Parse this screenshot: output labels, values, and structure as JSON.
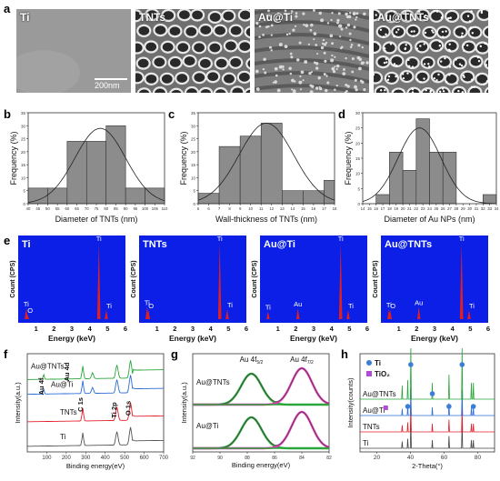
{
  "panels": {
    "a": "a",
    "b": "b",
    "c": "c",
    "d": "d",
    "e": "e",
    "f": "f",
    "g": "g",
    "h": "h"
  },
  "sem": {
    "images": [
      {
        "label": "Ti",
        "tone": "#9a9a9a"
      },
      {
        "label": "TNTs",
        "tone": "#6f6f6f"
      },
      {
        "label": "Au@Ti",
        "tone": "#7d7d7d"
      },
      {
        "label": "Au@TNTs",
        "tone": "#767676"
      }
    ],
    "scale_bar": "200nm"
  },
  "chart_data": [
    {
      "panel": "b",
      "type": "bar",
      "xlabel": "Diameter of TNTs (nm)",
      "ylabel": "Frequency (%)",
      "xlim": [
        40,
        110
      ],
      "ylim": [
        0,
        35
      ],
      "xticks": [
        "40",
        "45",
        "50",
        "55",
        "60",
        "65",
        "70",
        "75",
        "80",
        "85",
        "90",
        "95",
        "100",
        "105",
        "110"
      ],
      "yticks": [
        "0",
        "5",
        "10",
        "15",
        "20",
        "25",
        "30",
        "35"
      ],
      "bins": [
        [
          40,
          50,
          6
        ],
        [
          50,
          60,
          6
        ],
        [
          60,
          70,
          24
        ],
        [
          70,
          80,
          24
        ],
        [
          80,
          90,
          30
        ],
        [
          90,
          100,
          6
        ],
        [
          100,
          110,
          6
        ]
      ],
      "fit_curve": {
        "type": "gaussian",
        "mean": 77,
        "sd": 13,
        "peak": 29
      }
    },
    {
      "panel": "c",
      "type": "bar",
      "xlabel": "Wall-thickness of TNTs (nm)",
      "ylabel": "Frequency (%)",
      "xlim": [
        5,
        18
      ],
      "ylim": [
        0,
        35
      ],
      "xticks": [
        "5",
        "6",
        "7",
        "8",
        "9",
        "10",
        "11",
        "12",
        "13",
        "14",
        "15",
        "16",
        "17",
        "18"
      ],
      "yticks": [
        "0",
        "5",
        "10",
        "15",
        "20",
        "25",
        "30",
        "35"
      ],
      "bins": [
        [
          5,
          7,
          4
        ],
        [
          7,
          9,
          22
        ],
        [
          9,
          11,
          26
        ],
        [
          11,
          13,
          31
        ],
        [
          13,
          15,
          5
        ],
        [
          15,
          17,
          5
        ],
        [
          17,
          18,
          9
        ]
      ],
      "fit_curve": {
        "type": "gaussian",
        "mean": 11.5,
        "sd": 2.6,
        "peak": 31
      }
    },
    {
      "panel": "d",
      "type": "bar",
      "xlabel": "Diameter of Au NPs (nm)",
      "ylabel": "Frequency (%)",
      "xlim": [
        14,
        34
      ],
      "ylim": [
        0,
        30
      ],
      "xticks": [
        "14",
        "15",
        "16",
        "17",
        "18",
        "19",
        "20",
        "21",
        "22",
        "23",
        "24",
        "25",
        "26",
        "27",
        "28",
        "29",
        "30",
        "31",
        "32",
        "33",
        "34"
      ],
      "yticks": [
        "0",
        "5",
        "10",
        "15",
        "20",
        "25",
        "30"
      ],
      "bins": [
        [
          16,
          18,
          3
        ],
        [
          18,
          20,
          17
        ],
        [
          20,
          22,
          11
        ],
        [
          22,
          24,
          28
        ],
        [
          24,
          26,
          17
        ],
        [
          26,
          28,
          17
        ],
        [
          32,
          34,
          3
        ]
      ],
      "fit_curve": {
        "type": "gaussian",
        "mean": 22.5,
        "sd": 3.2,
        "peak": 25
      }
    },
    {
      "panel": "e",
      "type": "bar",
      "xlabel": "Energy (keV)",
      "ylabel": "Count (CPS)",
      "xlim": [
        0,
        6
      ],
      "xticks": [
        "1",
        "2",
        "3",
        "4",
        "5",
        "6"
      ],
      "spectra": [
        {
          "name": "Ti",
          "peaks": [
            {
              "label": "Ti",
              "x": 0.45,
              "y": 0.14
            },
            {
              "label": "O",
              "x": 0.52,
              "y": 0.06
            },
            {
              "label": "Ti",
              "x": 4.51,
              "y": 1.0
            },
            {
              "label": "Ti",
              "x": 4.93,
              "y": 0.12
            }
          ]
        },
        {
          "name": "TNTs",
          "peaks": [
            {
              "label": "Ti",
              "x": 0.45,
              "y": 0.16
            },
            {
              "label": "O",
              "x": 0.52,
              "y": 0.12
            },
            {
              "label": "Ti",
              "x": 4.51,
              "y": 1.0
            },
            {
              "label": "Ti",
              "x": 4.93,
              "y": 0.13
            }
          ]
        },
        {
          "name": "Au@Ti",
          "peaks": [
            {
              "label": "Ti",
              "x": 0.45,
              "y": 0.1
            },
            {
              "label": "Au",
              "x": 2.12,
              "y": 0.14
            },
            {
              "label": "Ti",
              "x": 4.51,
              "y": 1.0
            },
            {
              "label": "Ti",
              "x": 4.93,
              "y": 0.12
            }
          ]
        },
        {
          "name": "Au@TNTs",
          "peaks": [
            {
              "label": "Ti",
              "x": 0.45,
              "y": 0.13
            },
            {
              "label": "O",
              "x": 0.52,
              "y": 0.12
            },
            {
              "label": "Au",
              "x": 2.12,
              "y": 0.16
            },
            {
              "label": "Ti",
              "x": 4.51,
              "y": 1.0
            },
            {
              "label": "Ti",
              "x": 4.93,
              "y": 0.12
            }
          ]
        }
      ],
      "colors": {
        "background": "#0b1fe6",
        "peak": "#e02020"
      }
    },
    {
      "panel": "f",
      "type": "line",
      "xlabel": "Binding energy(eV)",
      "ylabel": "Intensity(a.u.)",
      "xlim": [
        0,
        700
      ],
      "xticks": [
        "100",
        "200",
        "300",
        "400",
        "500",
        "600",
        "700"
      ],
      "series": [
        {
          "name": "Ti",
          "color": "#555555",
          "offset": 0.02
        },
        {
          "name": "TNTs",
          "color": "#e3202b",
          "offset": 0.27
        },
        {
          "name": "Au@Ti",
          "color": "#2b6cd8",
          "offset": 0.55
        },
        {
          "name": "Au@TNTs",
          "color": "#2aa63a",
          "offset": 0.7
        }
      ],
      "peak_labels": [
        "Au 4f",
        "Au 4d",
        "C 1s",
        "Ti 2p",
        "O 1s"
      ]
    },
    {
      "panel": "g",
      "type": "line",
      "xlabel": "Binding energy(eV)",
      "ylabel": "Intensity(a.u.)",
      "xlim": [
        92,
        82
      ],
      "xticks": [
        "92",
        "90",
        "88",
        "86",
        "84",
        "82"
      ],
      "series": [
        {
          "name": "Au@TNTs",
          "components": [
            "Au 4f5/2",
            "Au 4f7/2"
          ]
        },
        {
          "name": "Au@Ti"
        }
      ],
      "peak_labels": [
        {
          "main": "Au 4f",
          "sub": "5/2",
          "x": 87.7
        },
        {
          "main": "Au 4f",
          "sub": "7/2",
          "x": 84.0
        }
      ],
      "colors": {
        "raw": "#444444",
        "fit1": "#2aa63a",
        "fit2": "#e236b5"
      }
    },
    {
      "panel": "h",
      "type": "line",
      "xlabel": "2-Theta(°)",
      "ylabel": "Intensity(counts)",
      "xlim": [
        10,
        90
      ],
      "xticks": [
        "20",
        "40",
        "60",
        "80"
      ],
      "legend": [
        {
          "name": "Ti",
          "marker": "circle",
          "color": "#3a7fd5"
        },
        {
          "name": "TiO₂",
          "marker": "square",
          "color": "#b04ad8"
        }
      ],
      "series": [
        {
          "name": "Ti",
          "color": "#444444"
        },
        {
          "name": "TNTs",
          "color": "#e3202b"
        },
        {
          "name": "Au@Ti",
          "color": "#2b6cd8"
        },
        {
          "name": "Au@TNTs",
          "color": "#2aa63a"
        }
      ],
      "ti_peaks_2theta": [
        35.1,
        38.4,
        40.2,
        53.0,
        62.9,
        70.7,
        76.2,
        77.4
      ],
      "tio2_peaks_2theta": [
        25.3
      ]
    }
  ]
}
